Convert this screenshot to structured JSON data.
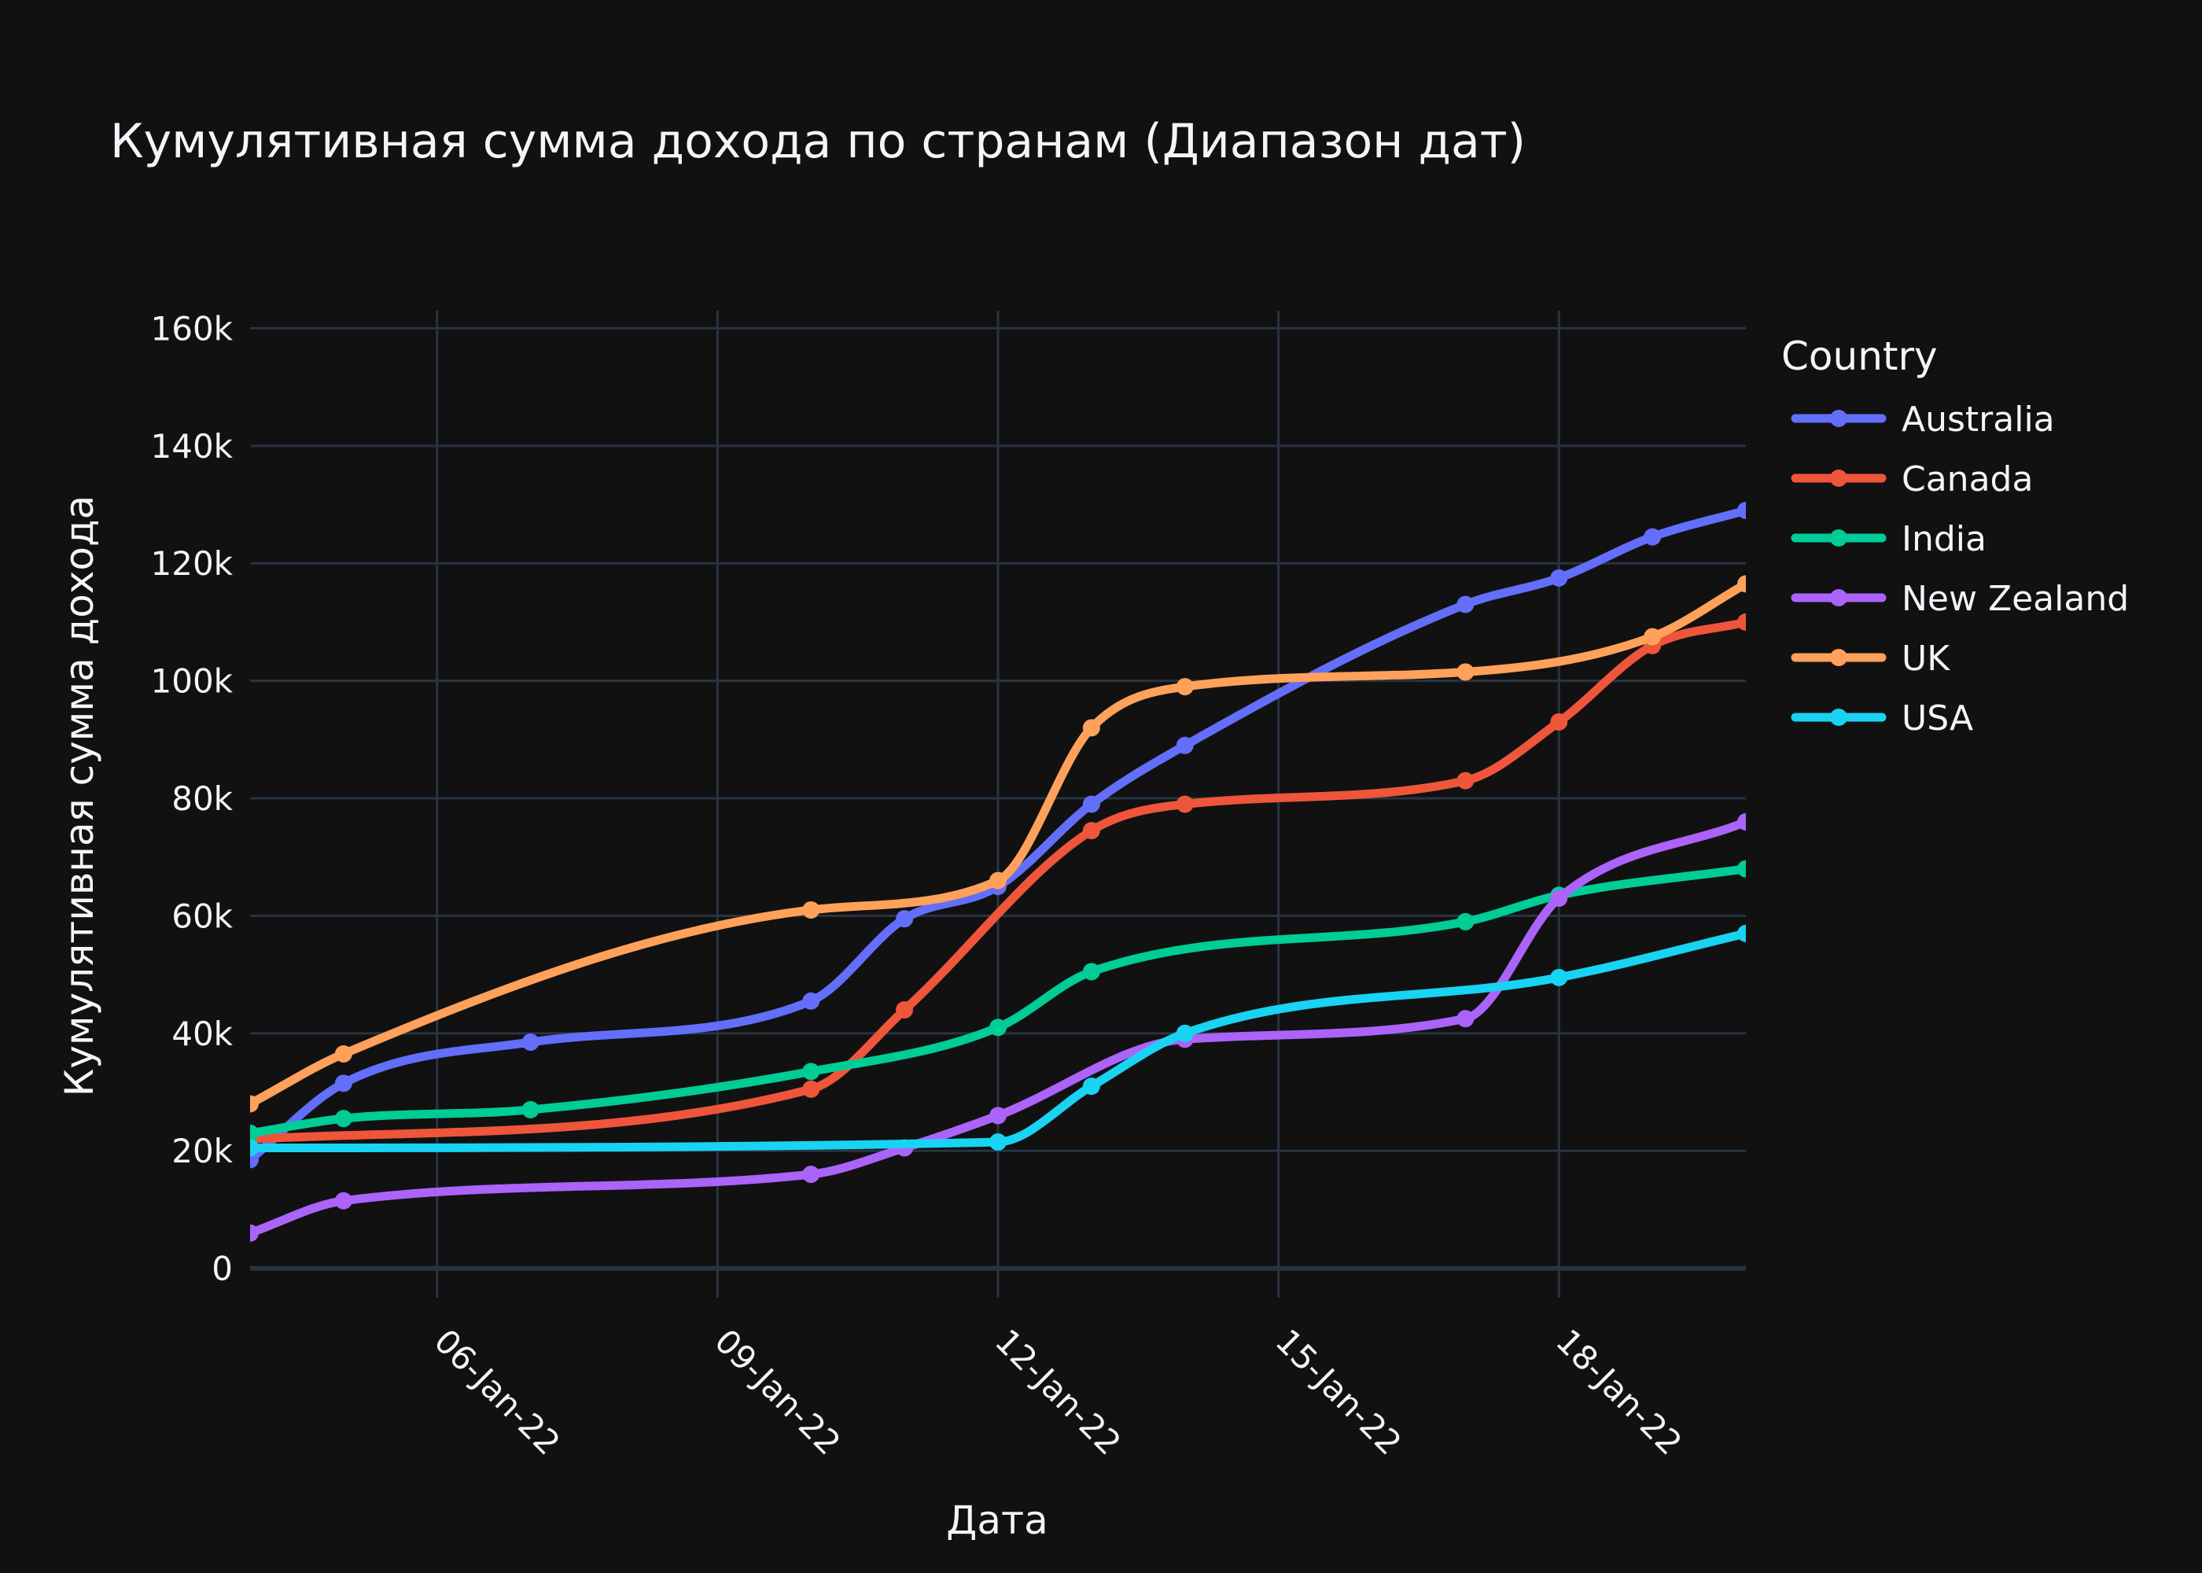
{
  "chart_data": {
    "type": "line",
    "title": "Кумулятивная сумма дохода по странам (Диапазон дат)",
    "xlabel": "Дата",
    "ylabel": "Кумулятивная сумма дохода",
    "x_tick_labels": [
      "06-Jan-22",
      "09-Jan-22",
      "12-Jan-22",
      "15-Jan-22",
      "18-Jan-22"
    ],
    "x_tick_dates": [
      "2022-01-06",
      "2022-01-09",
      "2022-01-12",
      "2022-01-15",
      "2022-01-18"
    ],
    "x_range": [
      "2022-01-04",
      "2022-01-20"
    ],
    "y_tick_labels": [
      "0",
      "20k",
      "40k",
      "60k",
      "80k",
      "100k",
      "120k",
      "140k",
      "160k"
    ],
    "y_tick_values": [
      0,
      20000,
      40000,
      60000,
      80000,
      100000,
      120000,
      140000,
      160000
    ],
    "ylim": [
      -5000,
      163000
    ],
    "grid": true,
    "legend_title": "Country",
    "legend_position": "right",
    "series": [
      {
        "name": "Australia",
        "color": "#636efa",
        "points": [
          [
            "2022-01-04",
            18500
          ],
          [
            "2022-01-05",
            31500
          ],
          [
            "2022-01-07",
            38500
          ],
          [
            "2022-01-10",
            45500
          ],
          [
            "2022-01-11",
            59500
          ],
          [
            "2022-01-12",
            65000
          ],
          [
            "2022-01-13",
            79000
          ],
          [
            "2022-01-14",
            89000
          ],
          [
            "2022-01-17",
            113000
          ],
          [
            "2022-01-18",
            117500
          ],
          [
            "2022-01-19",
            124500
          ],
          [
            "2022-01-20",
            129000
          ]
        ]
      },
      {
        "name": "Canada",
        "color": "#ef553b",
        "points": [
          [
            "2022-01-04",
            22000
          ],
          [
            "2022-01-10",
            30500
          ],
          [
            "2022-01-11",
            44000
          ],
          [
            "2022-01-13",
            74500
          ],
          [
            "2022-01-14",
            79000
          ],
          [
            "2022-01-17",
            83000
          ],
          [
            "2022-01-18",
            93000
          ],
          [
            "2022-01-19",
            106000
          ],
          [
            "2022-01-20",
            110000
          ]
        ]
      },
      {
        "name": "India",
        "color": "#00cc96",
        "points": [
          [
            "2022-01-04",
            23000
          ],
          [
            "2022-01-05",
            25500
          ],
          [
            "2022-01-07",
            27000
          ],
          [
            "2022-01-10",
            33500
          ],
          [
            "2022-01-12",
            41000
          ],
          [
            "2022-01-13",
            50500
          ],
          [
            "2022-01-17",
            59000
          ],
          [
            "2022-01-18",
            63500
          ],
          [
            "2022-01-20",
            68000
          ]
        ]
      },
      {
        "name": "New Zealand",
        "color": "#ab63fa",
        "points": [
          [
            "2022-01-04",
            6000
          ],
          [
            "2022-01-05",
            11500
          ],
          [
            "2022-01-10",
            16000
          ],
          [
            "2022-01-11",
            20500
          ],
          [
            "2022-01-12",
            26000
          ],
          [
            "2022-01-14",
            39000
          ],
          [
            "2022-01-17",
            42500
          ],
          [
            "2022-01-18",
            63000
          ],
          [
            "2022-01-20",
            76000
          ]
        ]
      },
      {
        "name": "UK",
        "color": "#ffa15a",
        "points": [
          [
            "2022-01-04",
            28000
          ],
          [
            "2022-01-05",
            36500
          ],
          [
            "2022-01-10",
            61000
          ],
          [
            "2022-01-12",
            66000
          ],
          [
            "2022-01-13",
            92000
          ],
          [
            "2022-01-14",
            99000
          ],
          [
            "2022-01-17",
            101500
          ],
          [
            "2022-01-19",
            107500
          ],
          [
            "2022-01-20",
            116500
          ]
        ]
      },
      {
        "name": "USA",
        "color": "#19d3f3",
        "points": [
          [
            "2022-01-04",
            20500
          ],
          [
            "2022-01-12",
            21500
          ],
          [
            "2022-01-13",
            31000
          ],
          [
            "2022-01-14",
            40000
          ],
          [
            "2022-01-18",
            49500
          ],
          [
            "2022-01-20",
            57000
          ]
        ]
      }
    ]
  }
}
